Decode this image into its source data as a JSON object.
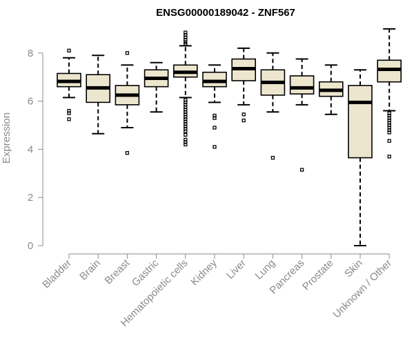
{
  "chart_data": {
    "type": "box",
    "title": "ENSG00000189042 - ZNF567",
    "xlabel": "",
    "ylabel": "Expression",
    "ylim": [
      0,
      9
    ],
    "yticks": [
      0,
      2,
      4,
      6,
      8
    ],
    "grid": false,
    "box_color": "#ede6ce",
    "categories": [
      "Bladder",
      "Brain",
      "Breast",
      "Gastric",
      "Hematopoietic cells",
      "Kidney",
      "Liver",
      "Lung",
      "Pancreas",
      "Prostate",
      "Skin",
      "Unknown / Other"
    ],
    "boxes": [
      {
        "category": "Bladder",
        "whisker_low": 6.15,
        "q1": 6.6,
        "median": 6.82,
        "q3": 7.15,
        "whisker_high": 7.8,
        "outliers": [
          8.1,
          5.6,
          5.5,
          5.25
        ]
      },
      {
        "category": "Brain",
        "whisker_low": 4.65,
        "q1": 5.95,
        "median": 6.55,
        "q3": 7.1,
        "whisker_high": 7.9,
        "outliers": []
      },
      {
        "category": "Breast",
        "whisker_low": 4.9,
        "q1": 5.85,
        "median": 6.25,
        "q3": 6.65,
        "whisker_high": 7.5,
        "outliers": [
          8.0,
          3.85
        ]
      },
      {
        "category": "Gastric",
        "whisker_low": 5.55,
        "q1": 6.6,
        "median": 6.95,
        "q3": 7.3,
        "whisker_high": 7.6,
        "outliers": []
      },
      {
        "category": "Hematopoietic cells",
        "whisker_low": 6.15,
        "q1": 7.0,
        "median": 7.2,
        "q3": 7.5,
        "whisker_high": 8.3,
        "outliers": [
          8.85,
          8.75,
          8.65,
          8.55,
          8.45,
          8.38,
          6.05,
          5.95,
          5.85,
          5.75,
          5.65,
          5.55,
          5.45,
          5.35,
          5.25,
          5.15,
          5.05,
          4.95,
          4.85,
          4.75,
          4.6,
          4.4,
          4.3,
          4.2
        ]
      },
      {
        "category": "Kidney",
        "whisker_low": 5.95,
        "q1": 6.6,
        "median": 6.82,
        "q3": 7.2,
        "whisker_high": 7.5,
        "outliers": [
          5.4,
          5.3,
          4.9,
          4.1
        ]
      },
      {
        "category": "Liver",
        "whisker_low": 5.85,
        "q1": 6.85,
        "median": 7.35,
        "q3": 7.75,
        "whisker_high": 8.2,
        "outliers": [
          5.45,
          5.2
        ]
      },
      {
        "category": "Lung",
        "whisker_low": 5.55,
        "q1": 6.25,
        "median": 6.78,
        "q3": 7.3,
        "whisker_high": 8.0,
        "outliers": [
          3.65
        ]
      },
      {
        "category": "Pancreas",
        "whisker_low": 5.85,
        "q1": 6.3,
        "median": 6.55,
        "q3": 7.05,
        "whisker_high": 7.75,
        "outliers": [
          3.15
        ]
      },
      {
        "category": "Prostate",
        "whisker_low": 5.45,
        "q1": 6.2,
        "median": 6.45,
        "q3": 6.8,
        "whisker_high": 7.5,
        "outliers": []
      },
      {
        "category": "Skin",
        "whisker_low": 0.0,
        "q1": 3.65,
        "median": 5.95,
        "q3": 6.65,
        "whisker_high": 7.3,
        "outliers": []
      },
      {
        "category": "Unknown / Other",
        "whisker_low": 5.6,
        "q1": 6.8,
        "median": 7.32,
        "q3": 7.7,
        "whisker_high": 9.0,
        "outliers": [
          5.5,
          5.4,
          5.3,
          5.2,
          5.1,
          5.0,
          4.9,
          4.8,
          4.7,
          4.35,
          3.7
        ]
      }
    ]
  }
}
